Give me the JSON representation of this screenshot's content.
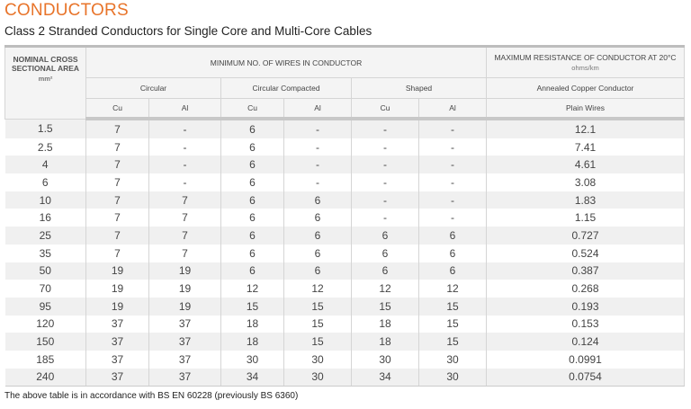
{
  "title": "CONDUCTORS",
  "subtitle": "Class 2 Stranded Conductors for Single Core and Multi-Core Cables",
  "header": {
    "area": "NOMINAL CROSS SECTIONAL AREA",
    "area_unit": "mm²",
    "wires": "MINIMUM NO. OF WIRES IN CONDUCTOR",
    "resistance": "MAXIMUM RESISTANCE OF CONDUCTOR AT 20°C",
    "resistance_unit": "ohms/km",
    "circular": "Circular",
    "compacted": "Circular Compacted",
    "shaped": "Shaped",
    "annealed": "Annealed Copper Conductor",
    "cu": "Cu",
    "al": "Al",
    "plain": "Plain Wires"
  },
  "rows": [
    [
      "1.5",
      "7",
      "-",
      "6",
      "-",
      "-",
      "-",
      "12.1"
    ],
    [
      "2.5",
      "7",
      "-",
      "6",
      "-",
      "-",
      "-",
      "7.41"
    ],
    [
      "4",
      "7",
      "-",
      "6",
      "-",
      "-",
      "-",
      "4.61"
    ],
    [
      "6",
      "7",
      "-",
      "6",
      "-",
      "-",
      "-",
      "3.08"
    ],
    [
      "10",
      "7",
      "7",
      "6",
      "6",
      "-",
      "-",
      "1.83"
    ],
    [
      "16",
      "7",
      "7",
      "6",
      "6",
      "-",
      "-",
      "1.15"
    ],
    [
      "25",
      "7",
      "7",
      "6",
      "6",
      "6",
      "6",
      "0.727"
    ],
    [
      "35",
      "7",
      "7",
      "6",
      "6",
      "6",
      "6",
      "0.524"
    ],
    [
      "50",
      "19",
      "19",
      "6",
      "6",
      "6",
      "6",
      "0.387"
    ],
    [
      "70",
      "19",
      "19",
      "12",
      "12",
      "12",
      "12",
      "0.268"
    ],
    [
      "95",
      "19",
      "19",
      "15",
      "15",
      "15",
      "15",
      "0.193"
    ],
    [
      "120",
      "37",
      "37",
      "18",
      "15",
      "18",
      "15",
      "0.153"
    ],
    [
      "150",
      "37",
      "37",
      "18",
      "15",
      "18",
      "15",
      "0.124"
    ],
    [
      "185",
      "37",
      "37",
      "30",
      "30",
      "30",
      "30",
      "0.0991"
    ],
    [
      "240",
      "37",
      "37",
      "34",
      "30",
      "34",
      "30",
      "0.0754"
    ]
  ],
  "note": "The above table is in accordance with BS EN 60228 (previously BS 6360)"
}
